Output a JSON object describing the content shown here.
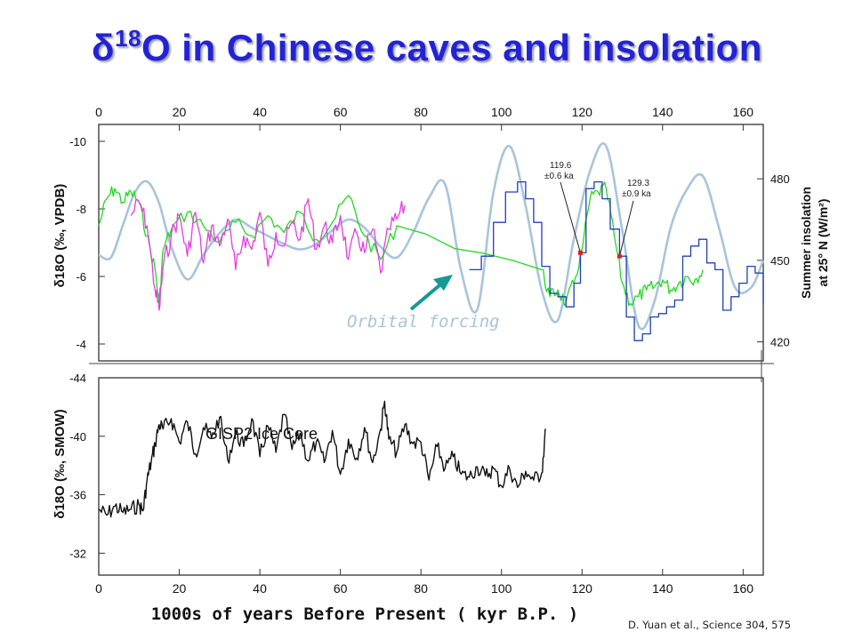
{
  "title": {
    "greek": "δ",
    "sup": "18",
    "rest": "O in Chinese caves and insolation"
  },
  "citation": "D. Yuan et al., Science 304, 575",
  "chart_data": [
    {
      "type": "line",
      "panel": "top",
      "xlim": [
        0,
        165
      ],
      "x_ticks": [
        0,
        20,
        40,
        60,
        80,
        100,
        120,
        140,
        160
      ],
      "ylabel_left": "δ18O (‰, VPDB)",
      "ylim_left": [
        -3.5,
        -10.5
      ],
      "yticks_left": [
        -10,
        -8,
        -6,
        -4
      ],
      "ylabel_right_line1": "Summer insolation",
      "ylabel_right_line2": "at 25° N (W/m²)",
      "ylim_right": [
        413,
        500
      ],
      "yticks_right": [
        420,
        450,
        480
      ],
      "series": [
        {
          "key": "insolation",
          "color": "#a8c4dc",
          "axis": "right",
          "x": [
            0,
            3,
            6,
            9,
            12,
            15,
            18,
            22,
            26,
            30,
            34,
            38,
            42,
            46,
            50,
            54,
            58,
            62,
            66,
            70,
            74,
            78,
            82,
            86,
            90,
            94,
            98,
            102,
            106,
            110,
            114,
            118,
            122,
            126,
            130,
            134,
            138,
            142,
            146,
            150,
            154,
            158,
            162,
            165
          ],
          "values": [
            452,
            451,
            463,
            475,
            479,
            471,
            455,
            443,
            452,
            460,
            465,
            462,
            459,
            456,
            454,
            456,
            461,
            465,
            462,
            455,
            451,
            460,
            473,
            478,
            446,
            432,
            475,
            492,
            470,
            439,
            428,
            458,
            483,
            492,
            461,
            426,
            435,
            462,
            476,
            481,
            462,
            440,
            440,
            450
          ]
        },
        {
          "key": "hulu",
          "color": "#22d822",
          "axis": "left",
          "x": [
            0,
            2,
            4,
            6,
            8,
            10,
            12,
            14,
            15,
            16,
            18,
            22,
            26,
            30,
            34,
            38,
            42,
            46,
            50,
            54,
            58,
            62,
            66,
            70,
            74,
            110,
            112,
            114,
            116,
            118,
            120,
            122,
            124,
            126,
            128,
            130,
            132,
            134,
            136,
            138,
            140,
            142,
            144,
            146,
            148,
            150
          ],
          "values": [
            -7.5,
            -8.3,
            -8.6,
            -8.2,
            -8.5,
            -8.2,
            -7.2,
            -6.2,
            -5.2,
            -6.8,
            -7.4,
            -7.9,
            -7.5,
            -7.0,
            -7.6,
            -7.2,
            -7.8,
            -7.3,
            -7.9,
            -7.1,
            -7.6,
            -8.4,
            -7.2,
            -6.5,
            -7.5,
            -6.2,
            -5.4,
            -5.6,
            -5.2,
            -5.8,
            -6.8,
            -8.3,
            -8.5,
            -8.6,
            -7.2,
            -5.8,
            -5.2,
            -5.4,
            -5.6,
            -5.7,
            -5.9,
            -5.6,
            -5.8,
            -6.0,
            -5.9,
            -6.2
          ]
        },
        {
          "key": "dongge",
          "color": "#e23ee2",
          "axis": "left",
          "x": [
            8,
            10,
            12,
            14,
            15,
            16,
            18,
            20,
            22,
            24,
            26,
            28,
            30,
            32,
            34,
            36,
            38,
            40,
            42,
            44,
            46,
            48,
            50,
            52,
            54,
            56,
            58,
            60,
            62,
            64,
            66,
            68,
            70,
            72,
            74,
            76
          ],
          "values": [
            -7.8,
            -8.2,
            -7.5,
            -5.6,
            -5.0,
            -6.3,
            -7.2,
            -7.8,
            -6.6,
            -7.9,
            -6.4,
            -7.5,
            -6.9,
            -7.7,
            -6.2,
            -7.2,
            -6.8,
            -7.9,
            -6.3,
            -7.3,
            -6.9,
            -7.6,
            -7.1,
            -8.3,
            -6.8,
            -7.5,
            -7.0,
            -7.8,
            -6.5,
            -7.3,
            -6.7,
            -7.4,
            -6.1,
            -7.4,
            -7.7,
            -8.1
          ]
        },
        {
          "key": "sanbao",
          "color": "#1f3fb8",
          "axis": "left",
          "x": [
            92,
            95,
            98,
            101,
            104,
            106,
            108,
            110,
            112,
            114,
            116,
            118,
            119.6,
            121,
            123,
            125,
            127,
            129.3,
            131,
            133,
            135,
            137,
            139,
            141,
            143,
            145,
            147,
            149,
            151,
            153,
            155,
            157,
            159,
            161,
            163,
            165
          ],
          "values": [
            -6.2,
            -6.6,
            -7.6,
            -8.5,
            -8.8,
            -8.3,
            -7.6,
            -6.3,
            -5.5,
            -5.4,
            -5.1,
            -5.8,
            -6.7,
            -8.6,
            -8.8,
            -8.3,
            -7.4,
            -6.6,
            -4.8,
            -4.1,
            -4.3,
            -4.8,
            -4.9,
            -5.1,
            -5.3,
            -6.6,
            -6.9,
            -7.1,
            -6.4,
            -6.2,
            -5.0,
            -5.4,
            -5.8,
            -6.3,
            -6.1,
            -5.2
          ]
        }
      ],
      "annotations": [
        {
          "text_1": "119.6",
          "text_2": "±0.6 ka",
          "x": 119.6,
          "y": -6.7,
          "marker_color": "#e32020"
        },
        {
          "text_1": "129.3",
          "text_2": "±0.9 ka",
          "x": 129.3,
          "y": -6.6,
          "marker_color": "#e32020"
        },
        {
          "text": "Orbital forcing",
          "color": "#a8c4dc",
          "arrow_color": "#159a94"
        }
      ]
    },
    {
      "type": "line",
      "panel": "bottom",
      "xlim": [
        0,
        165
      ],
      "x_ticks": [
        0,
        20,
        40,
        60,
        80,
        100,
        120,
        140,
        160
      ],
      "xlabel": "1000s of years Before Present ( kyr B.P. )",
      "ylabel_left": "δ18O (‰, SMOW)",
      "ylim_left": [
        -44,
        -30.5
      ],
      "yticks_left": [
        -32,
        -36,
        -40,
        -44
      ],
      "series": [
        {
          "key": "gisp2",
          "name": "GISP2 Ice Core",
          "color": "#111111",
          "x": [
            0,
            2,
            4,
            6,
            8,
            10,
            11,
            12,
            13,
            14,
            15,
            16,
            18,
            20,
            22,
            24,
            26,
            28,
            30,
            32,
            34,
            36,
            38,
            40,
            42,
            44,
            46,
            48,
            50,
            52,
            54,
            56,
            58,
            60,
            62,
            64,
            66,
            68,
            70,
            71,
            72,
            74,
            76,
            78,
            80,
            82,
            84,
            86,
            88,
            90,
            92,
            94,
            96,
            98,
            100,
            102,
            104,
            106,
            108,
            110,
            111
          ],
          "values": [
            -35.0,
            -34.6,
            -35.2,
            -34.8,
            -35.0,
            -35.3,
            -34.9,
            -37.0,
            -38.2,
            -39.5,
            -40.8,
            -40.5,
            -41.2,
            -39.6,
            -41.0,
            -38.8,
            -40.6,
            -39.9,
            -41.3,
            -38.4,
            -40.2,
            -39.3,
            -41.2,
            -38.6,
            -40.7,
            -38.9,
            -41.5,
            -39.1,
            -40.2,
            -38.3,
            -39.6,
            -38.2,
            -40.4,
            -37.4,
            -39.8,
            -38.5,
            -40.6,
            -38.2,
            -40.5,
            -42.4,
            -39.8,
            -38.9,
            -40.8,
            -39.5,
            -39.6,
            -37.0,
            -39.3,
            -37.8,
            -38.6,
            -37.4,
            -37.2,
            -37.9,
            -37.3,
            -37.8,
            -36.6,
            -37.8,
            -36.5,
            -37.6,
            -37.0,
            -37.5,
            -40.5
          ]
        }
      ]
    }
  ]
}
